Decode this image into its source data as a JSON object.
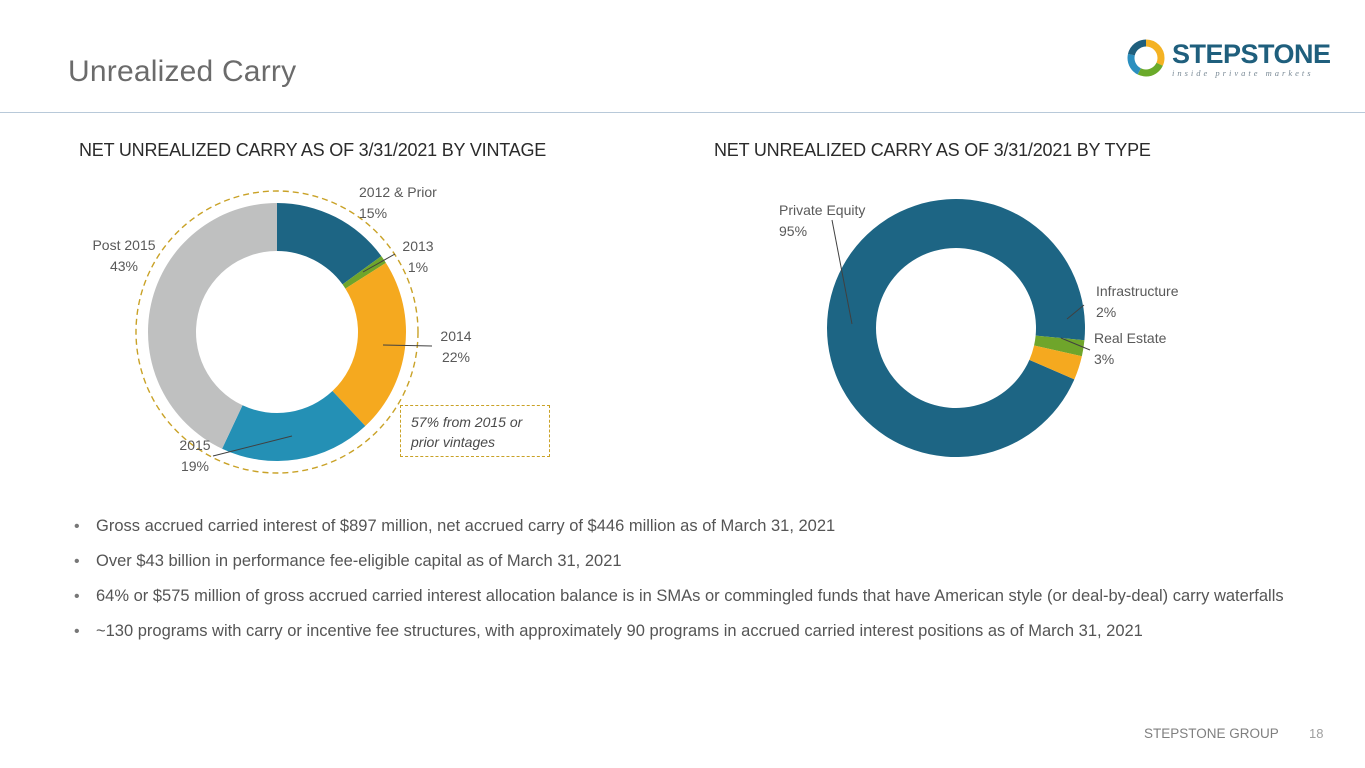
{
  "page": {
    "title": "Unrealized Carry",
    "footer_brand": "STEPSTONE GROUP",
    "page_number": "18"
  },
  "logo": {
    "name": "STEPSTONE",
    "tagline": "inside private markets",
    "colors": [
      "#f4b223",
      "#6aaa2a",
      "#2b8fbf",
      "#1f5f7d"
    ]
  },
  "charts": {
    "vintage_title": "NET UNREALIZED CARRY AS OF 3/31/2021 BY VINTAGE",
    "type_title": "NET UNREALIZED CARRY AS OF 3/31/2021 BY TYPE",
    "callout": "57% from 2015 or prior vintages"
  },
  "chart_data": [
    {
      "type": "pie",
      "donut": true,
      "title": "NET UNREALIZED CARRY AS OF 3/31/2021 BY VINTAGE",
      "slices": [
        {
          "label": "2012 & Prior",
          "value": 15,
          "value_label": "15%",
          "color": "#1d6584"
        },
        {
          "label": "2013",
          "value": 1,
          "value_label": "1%",
          "color": "#6fa52b"
        },
        {
          "label": "2014",
          "value": 22,
          "value_label": "22%",
          "color": "#f5a91f"
        },
        {
          "label": "2015",
          "value": 19,
          "value_label": "19%",
          "color": "#2490b5"
        },
        {
          "label": "Post 2015",
          "value": 43,
          "value_label": "43%",
          "color": "#bfc0c0"
        }
      ]
    },
    {
      "type": "pie",
      "donut": true,
      "title": "NET UNREALIZED CARRY AS OF 3/31/2021 BY TYPE",
      "slices": [
        {
          "label": "Private Equity",
          "value": 95,
          "value_label": "95%",
          "color": "#1d6584"
        },
        {
          "label": "Infrastructure",
          "value": 2,
          "value_label": "2%",
          "color": "#6fa52b"
        },
        {
          "label": "Real Estate",
          "value": 3,
          "value_label": "3%",
          "color": "#f5a91f"
        }
      ]
    }
  ],
  "bullets": [
    "Gross accrued carried interest of $897 million, net accrued carry of $446 million as of March 31, 2021",
    "Over $43 billion in performance fee-eligible capital as of March 31, 2021",
    "64% or $575 million of gross accrued carried interest allocation balance is in SMAs or commingled funds that have American style (or deal-by-deal) carry waterfalls",
    "~130 programs with carry or incentive fee structures, with approximately 90 programs in accrued carried interest positions as of March 31, 2021"
  ]
}
